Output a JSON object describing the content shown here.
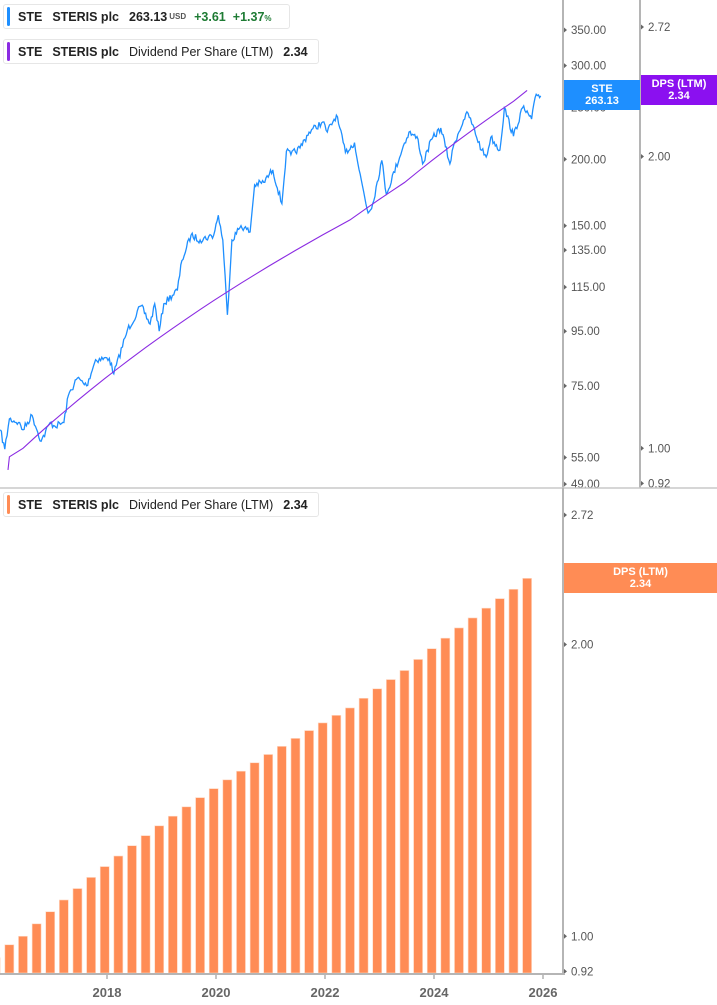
{
  "legends": {
    "price": {
      "ticker": "STE",
      "name": "STERIS plc",
      "price": "263.13",
      "currency": "USD",
      "change": "+3.61",
      "change_pct": "+1.37",
      "pct_sign": "%",
      "color": "#1e8fff"
    },
    "dps_top": {
      "ticker": "STE",
      "name": "STERIS plc",
      "metric": "Dividend Per Share (LTM)",
      "value": "2.34",
      "color": "#8b2be2"
    },
    "dps_bottom": {
      "ticker": "STE",
      "name": "STERIS plc",
      "metric": "Dividend Per Share (LTM)",
      "value": "2.34",
      "color": "#ff8c55"
    }
  },
  "tags": {
    "price": {
      "label": "STE",
      "value": "263.13",
      "color": "#1e8fff"
    },
    "dps_top": {
      "label": "DPS (LTM)",
      "value": "2.34",
      "color": "#8b10f0"
    },
    "dps_bottom": {
      "label": "DPS (LTM)",
      "value": "2.34",
      "color": "#ff8c55"
    }
  },
  "chart_data": [
    {
      "type": "line",
      "panel": "top",
      "y_scale": "log",
      "series": [
        {
          "name": "STE",
          "axis": "price",
          "color": "#1e8fff",
          "points": [
            [
              "2016-01",
              62
            ],
            [
              "2016-02",
              57
            ],
            [
              "2016-03",
              65
            ],
            [
              "2016-05",
              64
            ],
            [
              "2016-06",
              62
            ],
            [
              "2016-08",
              66
            ],
            [
              "2016-10",
              59
            ],
            [
              "2016-12",
              64
            ],
            [
              "2017-01",
              63
            ],
            [
              "2017-03",
              64
            ],
            [
              "2017-04",
              72
            ],
            [
              "2017-06",
              77.6
            ],
            [
              "2017-08",
              75
            ],
            [
              "2017-10",
              84
            ],
            [
              "2018-01",
              84.5
            ],
            [
              "2018-02",
              79
            ],
            [
              "2018-05",
              95.5
            ],
            [
              "2018-08",
              106
            ],
            [
              "2018-10",
              98
            ],
            [
              "2018-11",
              107
            ],
            [
              "2018-12",
              95
            ],
            [
              "2019-01",
              107
            ],
            [
              "2019-04",
              113.6
            ],
            [
              "2019-05",
              129
            ],
            [
              "2019-07",
              144
            ],
            [
              "2019-09",
              141
            ],
            [
              "2019-12",
              144
            ],
            [
              "2020-01",
              157
            ],
            [
              "2020-02",
              141
            ],
            [
              "2020-03",
              102
            ],
            [
              "2020-04",
              141
            ],
            [
              "2020-06",
              150
            ],
            [
              "2020-08",
              146
            ],
            [
              "2020-09",
              179
            ],
            [
              "2020-11",
              181
            ],
            [
              "2021-01",
              191
            ],
            [
              "2021-03",
              165
            ],
            [
              "2021-04",
              207
            ],
            [
              "2021-05",
              204
            ],
            [
              "2021-07",
              210
            ],
            [
              "2021-09",
              225
            ],
            [
              "2021-12",
              235
            ],
            [
              "2022-01",
              225
            ],
            [
              "2022-03",
              242
            ],
            [
              "2022-05",
              206
            ],
            [
              "2022-07",
              215
            ],
            [
              "2022-08",
              191
            ],
            [
              "2022-10",
              158.5
            ],
            [
              "2022-11",
              165
            ],
            [
              "2023-01",
              199
            ],
            [
              "2023-02",
              172
            ],
            [
              "2023-06",
              214.6
            ],
            [
              "2023-07",
              225
            ],
            [
              "2023-09",
              218
            ],
            [
              "2023-10",
              196
            ],
            [
              "2023-12",
              218
            ],
            [
              "2024-02",
              229
            ],
            [
              "2024-04",
              196
            ],
            [
              "2024-05",
              215
            ],
            [
              "2024-07",
              237
            ],
            [
              "2024-08",
              244
            ],
            [
              "2024-11",
              208
            ],
            [
              "2024-12",
              202
            ],
            [
              "2025-01",
              220
            ],
            [
              "2025-03",
              208
            ],
            [
              "2025-04",
              250
            ],
            [
              "2025-06",
              221
            ],
            [
              "2025-08",
              250
            ],
            [
              "2025-10",
              238
            ],
            [
              "2025-11",
              265
            ],
            [
              "2025-12",
              263.13
            ]
          ]
        },
        {
          "name": "Dividend Per Share (LTM)",
          "axis": "dps",
          "color": "#8b2be2",
          "source": "dps_bars"
        }
      ],
      "price_ticks": [
        "350.00",
        "300.00",
        "250.00",
        "200.00",
        "150.00",
        "135.00",
        "115.00",
        "95.00",
        "75.00",
        "55.00",
        "49.00"
      ],
      "price_range": [
        49,
        350
      ],
      "dps_ticks": [
        "2.72",
        "2.00",
        "1.00",
        "0.92"
      ],
      "dps_range": [
        0.92,
        2.72
      ]
    },
    {
      "type": "bar",
      "panel": "bottom",
      "y_scale": "log",
      "id": "dps_bars",
      "color": "#ff8c55",
      "dates": [
        "2015-12",
        "2016-03",
        "2016-06",
        "2016-09",
        "2016-12",
        "2017-03",
        "2017-06",
        "2017-09",
        "2017-12",
        "2018-03",
        "2018-06",
        "2018-09",
        "2018-12",
        "2019-03",
        "2019-06",
        "2019-09",
        "2019-12",
        "2020-03",
        "2020-06",
        "2020-09",
        "2020-12",
        "2021-03",
        "2021-06",
        "2021-09",
        "2021-12",
        "2022-03",
        "2022-06",
        "2022-09",
        "2022-12",
        "2023-03",
        "2023-06",
        "2023-09",
        "2023-12",
        "2024-03",
        "2024-06",
        "2024-09",
        "2024-12",
        "2025-03",
        "2025-06",
        "2025-09"
      ],
      "values": [
        0.95,
        0.98,
        1.0,
        1.03,
        1.06,
        1.09,
        1.12,
        1.15,
        1.18,
        1.21,
        1.24,
        1.27,
        1.3,
        1.33,
        1.36,
        1.39,
        1.42,
        1.45,
        1.48,
        1.51,
        1.54,
        1.57,
        1.6,
        1.63,
        1.66,
        1.69,
        1.72,
        1.76,
        1.8,
        1.84,
        1.88,
        1.93,
        1.98,
        2.03,
        2.08,
        2.13,
        2.18,
        2.23,
        2.28,
        2.34
      ],
      "dps_ticks": [
        "2.72",
        "2.00",
        "1.00",
        "0.92"
      ],
      "ylim": [
        0.92,
        2.72
      ],
      "x_ticks": [
        "2018",
        "2020",
        "2022",
        "2024",
        "2026"
      ]
    }
  ]
}
